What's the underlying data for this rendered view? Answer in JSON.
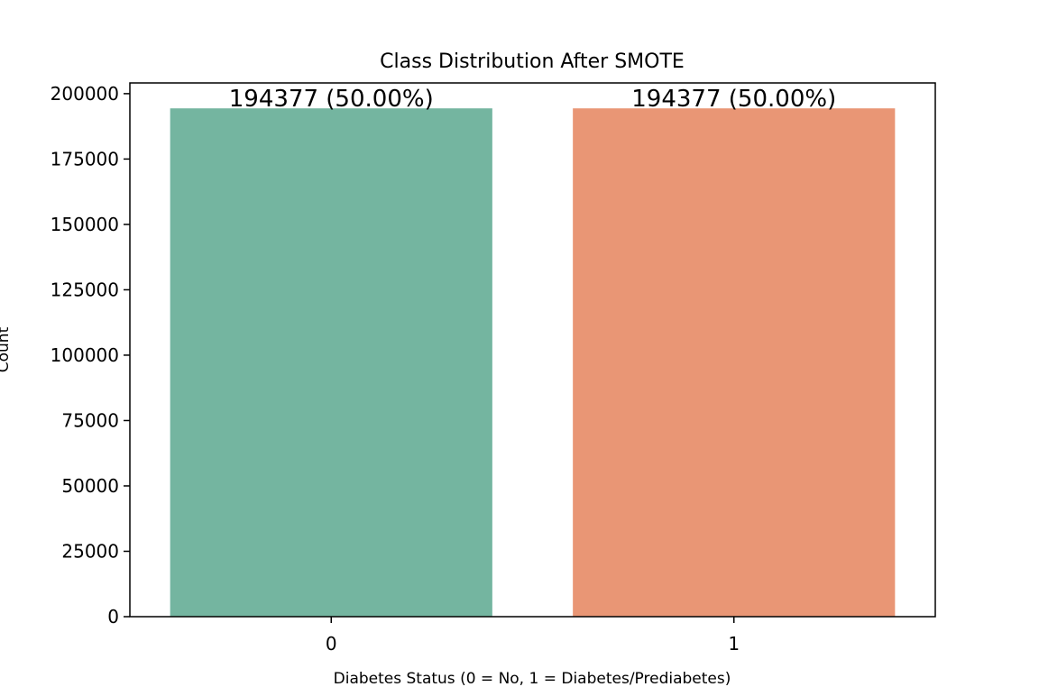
{
  "chart_data": {
    "type": "bar",
    "title": "Class Distribution After SMOTE",
    "xlabel": "Diabetes Status (0 = No, 1 = Diabetes/Prediabetes)",
    "ylabel": "Count",
    "categories": [
      "0",
      "1"
    ],
    "values": [
      194377,
      194377
    ],
    "bar_labels": [
      "194377 (50.00%)",
      "194377 (50.00%)"
    ],
    "colors": [
      "#74b5a0",
      "#e99675"
    ],
    "ylim": [
      0,
      204095.85
    ],
    "yticks": [
      0,
      25000,
      50000,
      75000,
      100000,
      125000,
      150000,
      175000,
      200000
    ],
    "grid": false,
    "legend": "none"
  }
}
